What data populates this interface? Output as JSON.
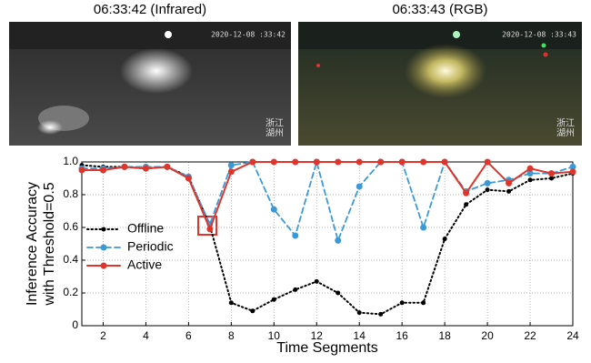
{
  "panels": [
    {
      "caption": "06:33:42 (Infrared)",
      "timestamp": "2020-12-08 :33:42",
      "watermark": [
        "浙江",
        "湖州"
      ]
    },
    {
      "caption": "06:33:43 (RGB)",
      "timestamp": "2020-12-08 :33:43",
      "watermark": [
        "浙江",
        "湖州"
      ]
    }
  ],
  "chart_data": {
    "type": "line",
    "xlabel": "Time Segments",
    "ylabel": [
      "Inference Accuracy",
      "with Threshold=0.5"
    ],
    "x": [
      1,
      2,
      3,
      4,
      5,
      6,
      7,
      8,
      9,
      10,
      11,
      12,
      13,
      14,
      15,
      16,
      17,
      18,
      19,
      20,
      21,
      22,
      23,
      24
    ],
    "xlim": [
      1,
      24
    ],
    "xticks": [
      2,
      4,
      6,
      8,
      10,
      12,
      14,
      16,
      18,
      20,
      22,
      24
    ],
    "ylim": [
      0,
      1
    ],
    "yticks": [
      0,
      0.2,
      0.4,
      0.6,
      0.8,
      {
        "value": 1,
        "label": "1.0"
      }
    ],
    "grid": true,
    "legend": "left",
    "series": [
      {
        "name": "Offline",
        "color": "#000000",
        "dash": "dotted",
        "values": [
          0.98,
          0.97,
          0.97,
          0.96,
          0.97,
          0.91,
          0.61,
          0.14,
          0.09,
          0.16,
          0.22,
          0.27,
          0.2,
          0.08,
          0.07,
          0.14,
          0.14,
          0.53,
          0.74,
          0.83,
          0.82,
          0.89,
          0.9,
          0.93
        ]
      },
      {
        "name": "Periodic",
        "color": "#3b9ad6",
        "dash": "dashed",
        "values": [
          0.96,
          0.96,
          0.97,
          0.97,
          0.97,
          0.91,
          0.62,
          0.98,
          1.0,
          0.71,
          0.55,
          1.0,
          0.52,
          0.85,
          1.0,
          1.0,
          0.6,
          1.0,
          0.82,
          0.87,
          0.89,
          0.93,
          0.93,
          0.97
        ]
      },
      {
        "name": "Active",
        "color": "#e0352b",
        "dash": "solid",
        "values": [
          0.95,
          0.95,
          0.97,
          0.96,
          0.97,
          0.9,
          0.59,
          0.94,
          1.0,
          1.0,
          1.0,
          1.0,
          1.0,
          1.0,
          1.0,
          1.0,
          1.0,
          1.0,
          0.81,
          1.0,
          0.87,
          0.96,
          0.93,
          0.94
        ]
      }
    ]
  }
}
